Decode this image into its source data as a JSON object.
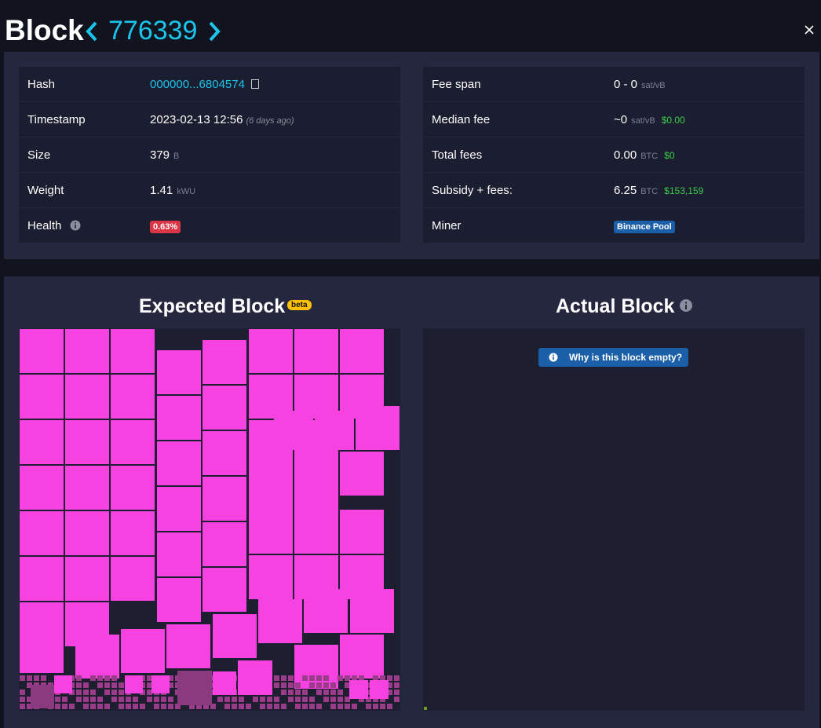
{
  "header": {
    "title": "Block",
    "block_height": "776339"
  },
  "details": {
    "left": [
      {
        "label": "Hash",
        "value": "000000...6804574"
      },
      {
        "label": "Timestamp",
        "value": "2023-02-13 12:56",
        "note": "(6 days ago)"
      },
      {
        "label": "Size",
        "value": "379",
        "unit": "B"
      },
      {
        "label": "Weight",
        "value": "1.41",
        "unit": "kWU"
      },
      {
        "label": "Health",
        "value": "0.63%"
      }
    ],
    "right": [
      {
        "label": "Fee span",
        "value": "0 - 0",
        "unit": "sat/vB"
      },
      {
        "label": "Median fee",
        "value": "~0",
        "unit": "sat/vB",
        "fiat": "$0.00"
      },
      {
        "label": "Total fees",
        "value": "0.00",
        "unit": "BTC",
        "fiat": "$0"
      },
      {
        "label": "Subsidy + fees:",
        "value": "6.25",
        "unit": "BTC",
        "fiat": "$153,159"
      },
      {
        "label": "Miner",
        "value": "Binance Pool"
      }
    ]
  },
  "expected_block": {
    "title": "Expected Block",
    "badge": "beta"
  },
  "actual_block": {
    "title": "Actual Block",
    "notice": "Why is this block empty?"
  }
}
